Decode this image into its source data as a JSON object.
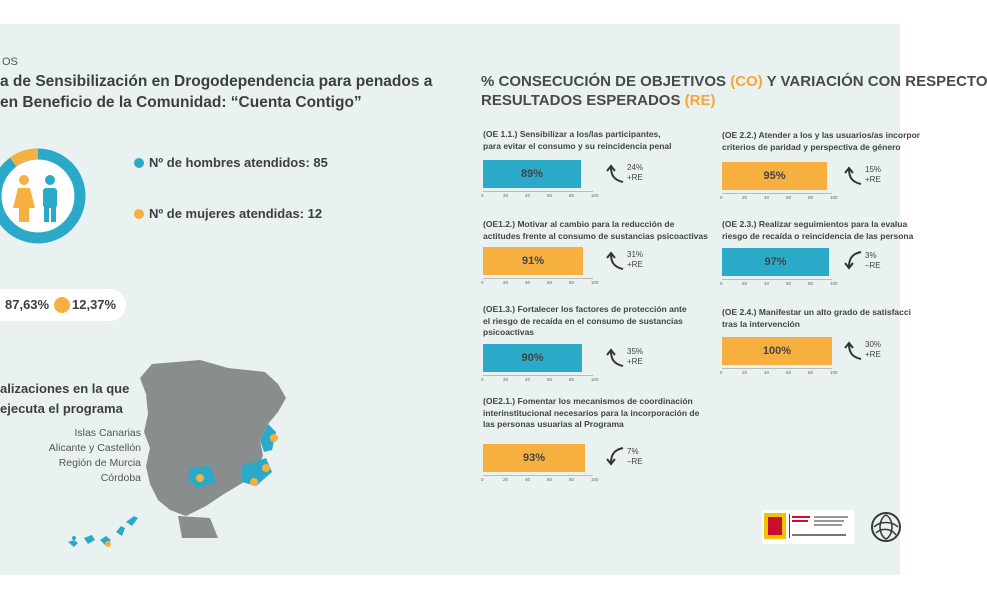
{
  "header": {
    "pre": "OS",
    "title_line1": "a de Sensibilización en Drogodependencia para penados a",
    "title_line2": "en Beneficio de la Comunidad: “Cuenta Contigo”"
  },
  "stats": {
    "men": "Nº de hombres atendidos: 85",
    "women": "Nº de mujeres atendidas: 12",
    "men_pct": "87,63%",
    "women_pct": "12,37%"
  },
  "locations": {
    "title_line1": "alizaciones en la que",
    "title_line2": "ejecuta el programa",
    "places": [
      "Islas Canarias",
      "Alicante y Castellón",
      "Región de Murcia",
      "Córdoba"
    ]
  },
  "objectives": {
    "title_line1_a": "% CONSECUCIÓN DE OBJETIVOS ",
    "title_line1_hl": "(CO)",
    "title_line1_b": " Y VARIACIÓN CON RESPECTO",
    "title_line2_a": "RESULTADOS ESPERADOS ",
    "title_line2_hl": "(RE)",
    "axis_ticks": [
      "0",
      "20",
      "40",
      "60",
      "80",
      "100"
    ],
    "items": [
      {
        "label": [
          "(OE 1.1.) Sensibilizar a los/las participantes,",
          "para evitar el consumo y su reincidencia penal"
        ],
        "value": "89%",
        "fraction": 0.89,
        "color": "#2ba9c8",
        "re_pct": "24%",
        "re_sign": "+RE",
        "direction": "up"
      },
      {
        "label": [
          "(OE1.2.) Motivar al cambio para la reducción de",
          "actitudes frente al consumo de sustancias psicoactivas"
        ],
        "value": "91%",
        "fraction": 0.91,
        "color": "#f6b040",
        "re_pct": "31%",
        "re_sign": "+RE",
        "direction": "up"
      },
      {
        "label": [
          "(OE1.3.) Fortalecer los factores de protección ante",
          "el riesgo de recaída en el consumo de sustancias",
          "psicoactivas"
        ],
        "value": "90%",
        "fraction": 0.9,
        "color": "#2ba9c8",
        "re_pct": "35%",
        "re_sign": "+RE",
        "direction": "up"
      },
      {
        "label": [
          "(OE2.1.) Fomentar los mecanismos de coordinación",
          "interinstitucional necesarios para la incorporación de",
          "las personas usuarias al Programa"
        ],
        "value": "93%",
        "fraction": 0.93,
        "color": "#f6b040",
        "re_pct": "7%",
        "re_sign": "–RE",
        "direction": "down"
      },
      {
        "label": [
          "(OE 2.2.) Atender a los y las usuarios/as incorpor",
          "criterios de paridad y perspectiva de género"
        ],
        "value": "95%",
        "fraction": 0.95,
        "color": "#f6b040",
        "re_pct": "15%",
        "re_sign": "+RE",
        "direction": "up"
      },
      {
        "label": [
          "(OE 2.3.) Realizar seguimientos para la evalua",
          "riesgo de recaída o reincidencia de las persona"
        ],
        "value": "97%",
        "fraction": 0.97,
        "color": "#2ba9c8",
        "re_pct": "3%",
        "re_sign": "–RE",
        "direction": "down"
      },
      {
        "label": [
          "(OE 2.4.) Manifestar un alto grado de satisfacci",
          "tras la intervención"
        ],
        "value": "100%",
        "fraction": 1.0,
        "color": "#f6b040",
        "re_pct": "30%",
        "re_sign": "+RE",
        "direction": "up"
      }
    ]
  },
  "colors": {
    "teal": "#2ba9c8",
    "orange": "#f6b040",
    "map_gray": "#8a8d8e",
    "background": "#e9f1f1"
  }
}
